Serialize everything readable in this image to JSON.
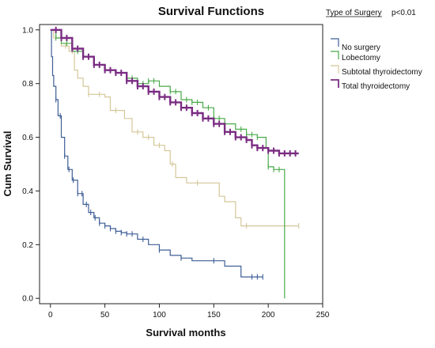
{
  "chart_data": {
    "type": "line",
    "title": "Survival Functions",
    "xlabel": "Survival months",
    "ylabel": "Cum Survival",
    "xlim": [
      -10,
      250
    ],
    "ylim": [
      -0.02,
      1.02
    ],
    "xticks": [
      0,
      50,
      100,
      150,
      200,
      250
    ],
    "yticks": [
      0.0,
      0.2,
      0.4,
      0.6,
      0.8,
      1.0
    ],
    "ytick_labels": [
      "0.0",
      "0.2",
      "0.4",
      "0.6",
      "0.8",
      "1.0"
    ],
    "grid": false,
    "legend": {
      "title": "Type of Surgery",
      "note": "p<0.01",
      "placement": "right"
    },
    "series": [
      {
        "name": "No surgery",
        "color": "#3f5f96",
        "points": [
          [
            0,
            1.0
          ],
          [
            1,
            0.9
          ],
          [
            2,
            0.83
          ],
          [
            3,
            0.79
          ],
          [
            5,
            0.74
          ],
          [
            7,
            0.68
          ],
          [
            10,
            0.6
          ],
          [
            13,
            0.53
          ],
          [
            16,
            0.48
          ],
          [
            20,
            0.44
          ],
          [
            25,
            0.39
          ],
          [
            30,
            0.35
          ],
          [
            35,
            0.32
          ],
          [
            40,
            0.3
          ],
          [
            45,
            0.28
          ],
          [
            50,
            0.27
          ],
          [
            55,
            0.26
          ],
          [
            60,
            0.25
          ],
          [
            65,
            0.245
          ],
          [
            70,
            0.24
          ],
          [
            80,
            0.22
          ],
          [
            90,
            0.2
          ],
          [
            100,
            0.18
          ],
          [
            110,
            0.16
          ],
          [
            120,
            0.15
          ],
          [
            130,
            0.14
          ],
          [
            145,
            0.14
          ],
          [
            160,
            0.12
          ],
          [
            175,
            0.08
          ],
          [
            190,
            0.08
          ],
          [
            195,
            0.08
          ]
        ],
        "censor_x": [
          5,
          9,
          13,
          17,
          21,
          25,
          29,
          33,
          37,
          41,
          45,
          50,
          55,
          60,
          65,
          70,
          75,
          85,
          100,
          120,
          150,
          185,
          190,
          195
        ]
      },
      {
        "name": "Lobectomy",
        "color": "#4aaa4a",
        "points": [
          [
            0,
            1.0
          ],
          [
            5,
            0.97
          ],
          [
            10,
            0.95
          ],
          [
            20,
            0.92
          ],
          [
            30,
            0.9
          ],
          [
            40,
            0.87
          ],
          [
            50,
            0.85
          ],
          [
            60,
            0.84
          ],
          [
            70,
            0.82
          ],
          [
            80,
            0.8
          ],
          [
            90,
            0.81
          ],
          [
            100,
            0.79
          ],
          [
            110,
            0.77
          ],
          [
            120,
            0.74
          ],
          [
            130,
            0.73
          ],
          [
            140,
            0.71
          ],
          [
            150,
            0.67
          ],
          [
            160,
            0.65
          ],
          [
            170,
            0.63
          ],
          [
            180,
            0.61
          ],
          [
            190,
            0.6
          ],
          [
            198,
            0.56
          ],
          [
            200,
            0.49
          ],
          [
            205,
            0.48
          ],
          [
            214,
            0.48
          ],
          [
            215,
            0.0
          ]
        ],
        "censor_x": [
          5,
          15,
          25,
          35,
          45,
          55,
          65,
          75,
          85,
          90,
          95,
          110,
          115,
          125,
          130,
          135,
          145,
          150,
          155,
          160,
          175,
          180,
          185,
          190,
          200,
          205,
          210
        ]
      },
      {
        "name": "Subtotal thyroidectomy",
        "color": "#d4c79a",
        "points": [
          [
            0,
            1.0
          ],
          [
            3,
            0.97
          ],
          [
            10,
            0.94
          ],
          [
            17,
            0.92
          ],
          [
            22,
            0.85
          ],
          [
            25,
            0.82
          ],
          [
            30,
            0.79
          ],
          [
            35,
            0.76
          ],
          [
            45,
            0.76
          ],
          [
            50,
            0.75
          ],
          [
            55,
            0.7
          ],
          [
            60,
            0.7
          ],
          [
            68,
            0.67
          ],
          [
            75,
            0.62
          ],
          [
            85,
            0.6
          ],
          [
            95,
            0.57
          ],
          [
            105,
            0.55
          ],
          [
            110,
            0.5
          ],
          [
            115,
            0.45
          ],
          [
            125,
            0.43
          ],
          [
            145,
            0.43
          ],
          [
            155,
            0.38
          ],
          [
            160,
            0.36
          ],
          [
            170,
            0.3
          ],
          [
            175,
            0.27
          ],
          [
            185,
            0.27
          ],
          [
            228,
            0.27
          ]
        ],
        "censor_x": [
          14,
          20,
          35,
          45,
          60,
          80,
          90,
          100,
          112,
          135,
          180,
          228
        ]
      },
      {
        "name": "Total thyroidectomy",
        "color": "#7a2d82",
        "points": [
          [
            0,
            1.0
          ],
          [
            10,
            0.97
          ],
          [
            20,
            0.93
          ],
          [
            30,
            0.9
          ],
          [
            40,
            0.87
          ],
          [
            50,
            0.85
          ],
          [
            60,
            0.84
          ],
          [
            70,
            0.81
          ],
          [
            80,
            0.79
          ],
          [
            90,
            0.77
          ],
          [
            100,
            0.75
          ],
          [
            110,
            0.73
          ],
          [
            120,
            0.71
          ],
          [
            130,
            0.69
          ],
          [
            140,
            0.67
          ],
          [
            150,
            0.65
          ],
          [
            160,
            0.62
          ],
          [
            170,
            0.6
          ],
          [
            180,
            0.59
          ],
          [
            185,
            0.57
          ],
          [
            190,
            0.56
          ],
          [
            200,
            0.55
          ],
          [
            210,
            0.54
          ],
          [
            228,
            0.54
          ]
        ],
        "censor_x": [
          5,
          10,
          15,
          20,
          25,
          30,
          35,
          40,
          45,
          50,
          55,
          60,
          65,
          70,
          75,
          80,
          85,
          90,
          95,
          100,
          105,
          110,
          115,
          120,
          125,
          130,
          135,
          140,
          145,
          150,
          155,
          160,
          165,
          170,
          175,
          180,
          185,
          190,
          195,
          200,
          205,
          210,
          215,
          220,
          225
        ]
      }
    ]
  }
}
